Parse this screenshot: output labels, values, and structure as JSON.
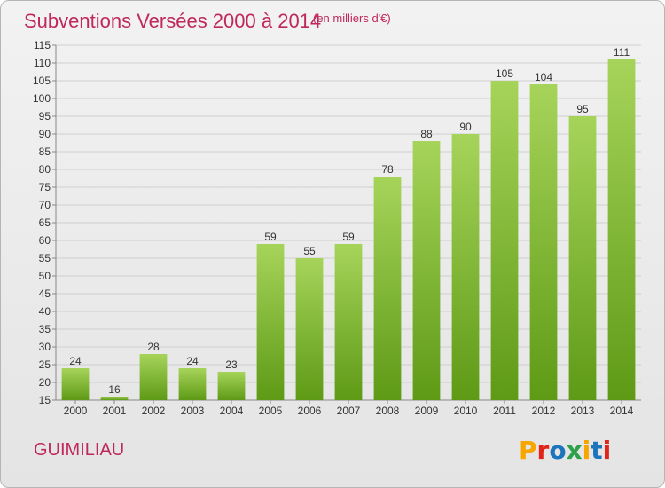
{
  "header": {
    "title": "Subventions Versées 2000 à 2014",
    "unit": "(en milliers d'€)"
  },
  "footer": {
    "commune": "GUIMILIAU",
    "logo_text": "Proxiti",
    "logo_colors": [
      "#f7a600",
      "#e2231a",
      "#1c75bc",
      "#2fa04a",
      "#f7a600",
      "#1c75bc",
      "#e2231a"
    ]
  },
  "colors": {
    "bar_top": "#a6d45a",
    "bar_bottom": "#5e9a16",
    "title": "#c0285a"
  },
  "chart_data": {
    "type": "bar",
    "categories": [
      "2000",
      "2001",
      "2002",
      "2003",
      "2004",
      "2005",
      "2006",
      "2007",
      "2008",
      "2009",
      "2010",
      "2011",
      "2012",
      "2013",
      "2014"
    ],
    "values": [
      24,
      16,
      28,
      24,
      23,
      59,
      55,
      59,
      78,
      88,
      90,
      105,
      104,
      95,
      111
    ],
    "ylim": [
      15,
      115
    ],
    "yticks": [
      15,
      20,
      25,
      30,
      35,
      40,
      45,
      50,
      55,
      60,
      65,
      70,
      75,
      80,
      85,
      90,
      95,
      100,
      105,
      110,
      115
    ],
    "grid": true,
    "title": "Subventions Versées 2000 à 2014",
    "xlabel": "",
    "ylabel": ""
  }
}
